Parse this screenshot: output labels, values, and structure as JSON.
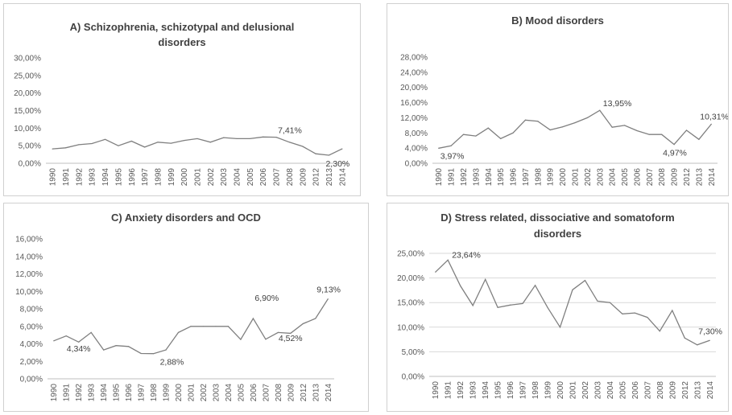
{
  "chart_data": [
    {
      "type": "line",
      "title": "A) Schizophrenia, schizotypal and delusional disorders",
      "title_lines": [
        "A) Schizophrenia, schizotypal and delusional",
        "disorders"
      ],
      "categories": [
        "1990",
        "1991",
        "1992",
        "1993",
        "1994",
        "1995",
        "1996",
        "1997",
        "1998",
        "1999",
        "2000",
        "2001",
        "2002",
        "2003",
        "2004",
        "2005",
        "2006",
        "2007",
        "2008",
        "2009",
        "2012",
        "2013",
        "2014"
      ],
      "values": [
        4.1,
        4.4,
        5.3,
        5.6,
        6.8,
        5.0,
        6.3,
        4.6,
        6.0,
        5.7,
        6.5,
        7.0,
        6.0,
        7.3,
        7.0,
        7.0,
        7.5,
        7.41,
        6.0,
        4.8,
        2.7,
        2.3,
        4.1
      ],
      "ylim": [
        0,
        30
      ],
      "yticks": [
        0,
        5,
        10,
        15,
        20,
        25,
        30
      ],
      "ytick_labels": [
        "0,00%",
        "5,00%",
        "10,00%",
        "15,00%",
        "20,00%",
        "25,00%",
        "30,00%"
      ],
      "grid": false,
      "annotations": [
        {
          "text": "7,41%",
          "index": 17
        },
        {
          "text": "2,30%",
          "index": 21
        }
      ]
    },
    {
      "type": "line",
      "title": "B) Mood disorders",
      "title_lines": [
        "B) Mood disorders"
      ],
      "categories": [
        "1990",
        "1991",
        "1992",
        "1993",
        "1994",
        "1995",
        "1996",
        "1997",
        "1998",
        "1999",
        "2000",
        "2001",
        "2002",
        "2003",
        "2004",
        "2005",
        "2006",
        "2007",
        "2008",
        "2009",
        "2012",
        "2013",
        "2014"
      ],
      "values": [
        3.97,
        4.6,
        7.6,
        7.2,
        9.3,
        6.5,
        8.0,
        11.4,
        11.1,
        8.8,
        9.6,
        10.7,
        12.0,
        13.95,
        9.5,
        10.0,
        8.6,
        7.6,
        7.6,
        4.97,
        8.7,
        6.3,
        10.31
      ],
      "ylim": [
        0,
        28
      ],
      "yticks": [
        0,
        4,
        8,
        12,
        16,
        20,
        24,
        28
      ],
      "ytick_labels": [
        "0,00%",
        "4,00%",
        "8,00%",
        "12,00%",
        "16,00%",
        "20,00%",
        "24,00%",
        "28,00%"
      ],
      "grid": false,
      "annotations": [
        {
          "text": "3,97%",
          "index": 0
        },
        {
          "text": "13,95%",
          "index": 13
        },
        {
          "text": "4,97%",
          "index": 19
        },
        {
          "text": "10,31%",
          "index": 22
        }
      ]
    },
    {
      "type": "line",
      "title": "C) Anxiety disorders and OCD",
      "title_lines": [
        "C) Anxiety disorders and OCD"
      ],
      "categories": [
        "1990",
        "1991",
        "1992",
        "1993",
        "1994",
        "1995",
        "1996",
        "1997",
        "1998",
        "1999",
        "2000",
        "2001",
        "2002",
        "2003",
        "2004",
        "2005",
        "2006",
        "2007",
        "2008",
        "2009",
        "2012",
        "2013",
        "2014"
      ],
      "values": [
        4.34,
        4.9,
        4.2,
        5.3,
        3.3,
        3.8,
        3.7,
        2.9,
        2.88,
        3.3,
        5.3,
        6.0,
        6.0,
        6.0,
        6.0,
        4.5,
        6.9,
        4.52,
        5.3,
        5.2,
        6.3,
        6.9,
        9.13
      ],
      "ylim": [
        0,
        16
      ],
      "yticks": [
        0,
        2,
        4,
        6,
        8,
        10,
        12,
        14,
        16
      ],
      "ytick_labels": [
        "0,00%",
        "2,00%",
        "4,00%",
        "6,00%",
        "8,00%",
        "10,00%",
        "12,00%",
        "14,00%",
        "16,00%"
      ],
      "grid": false,
      "annotations": [
        {
          "text": "4,34%",
          "index": 0
        },
        {
          "text": "2,88%",
          "index": 8
        },
        {
          "text": "6,90%",
          "index": 16
        },
        {
          "text": "4,52%",
          "index": 17
        },
        {
          "text": "9,13%",
          "index": 22
        }
      ]
    },
    {
      "type": "line",
      "title": "D) Stress related, dissociative and somatoform disorders",
      "title_lines": [
        "D) Stress related, dissociative and somatoform",
        "disorders"
      ],
      "categories": [
        "1990",
        "1991",
        "1992",
        "1993",
        "1994",
        "1995",
        "1996",
        "1997",
        "1998",
        "1999",
        "2000",
        "2001",
        "2002",
        "2003",
        "2004",
        "2005",
        "2006",
        "2007",
        "2008",
        "2009",
        "2012",
        "2013",
        "2014"
      ],
      "values": [
        21.2,
        23.64,
        18.4,
        14.4,
        19.7,
        14.0,
        14.5,
        14.8,
        18.5,
        14.0,
        10.0,
        17.6,
        19.5,
        15.3,
        15.0,
        12.7,
        12.9,
        12.0,
        9.2,
        13.4,
        7.8,
        6.4,
        7.3
      ],
      "ylim": [
        0,
        25
      ],
      "yticks": [
        0,
        5,
        10,
        15,
        20,
        25
      ],
      "ytick_labels": [
        "0,00%",
        "5,00%",
        "10,00%",
        "15,00%",
        "20,00%",
        "25,00%"
      ],
      "grid": true,
      "annotations": [
        {
          "text": "23,64%",
          "index": 1
        },
        {
          "text": "7,30%",
          "index": 22
        }
      ]
    }
  ],
  "colors": {
    "line": "#7f7f7f",
    "text": "#404040",
    "tick_text": "#595959",
    "border": "#d0d0d0",
    "gridline": "#d9d9d9"
  }
}
